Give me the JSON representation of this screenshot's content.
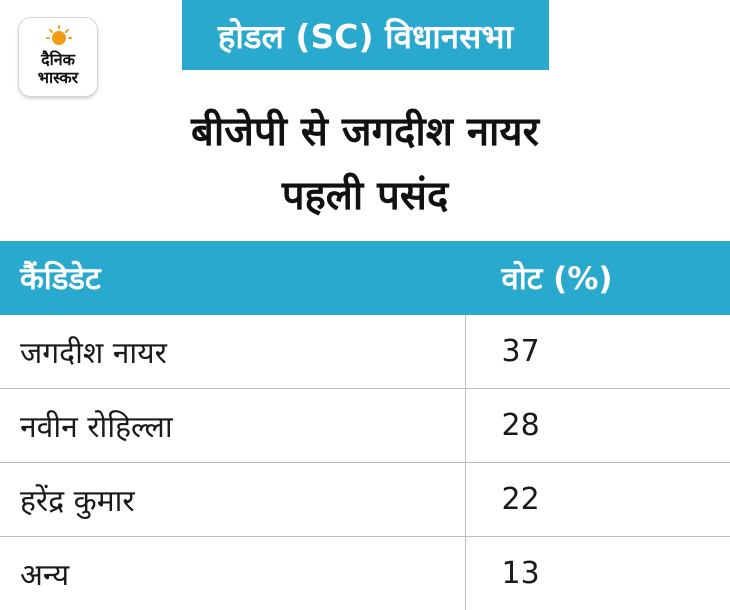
{
  "logo": {
    "line1": "दैनिक",
    "line2": "भास्कर",
    "sun_color": "#f39c12"
  },
  "header_tag": "होडल (SC) विधानसभा",
  "headline": {
    "line1": "बीजेपी से जगदीश नायर",
    "line2": "पहली पसंद"
  },
  "colors": {
    "accent": "#2aa9cf"
  },
  "table": {
    "columns": [
      "कैंडिडेट",
      "वोट (%)"
    ],
    "rows": [
      {
        "candidate": "जगदीश नायर",
        "vote": "37"
      },
      {
        "candidate": "नवीन रोहिल्ला",
        "vote": "28"
      },
      {
        "candidate": "हरेंद्र कुमार",
        "vote": "22"
      },
      {
        "candidate": "अन्य",
        "vote": "13"
      }
    ]
  },
  "chart_data": {
    "type": "table",
    "title": "बीजेपी से जगदीश नायर पहली पसंद",
    "subtitle": "होडल (SC) विधानसभा",
    "columns": [
      "कैंडिडेट",
      "वोट (%)"
    ],
    "categories": [
      "जगदीश नायर",
      "नवीन रोहिल्ला",
      "हरेंद्र कुमार",
      "अन्य"
    ],
    "values": [
      37,
      28,
      22,
      13
    ]
  }
}
